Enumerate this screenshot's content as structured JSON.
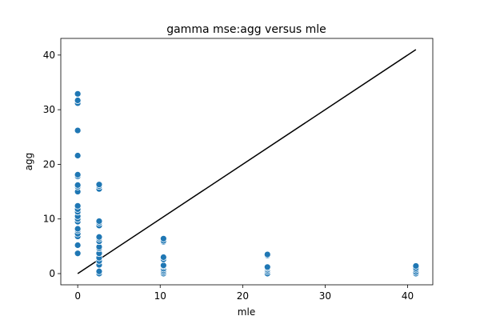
{
  "chart_data": {
    "type": "scatter",
    "title": "gamma mse:agg versus mle",
    "xlabel": "mle",
    "ylabel": "agg",
    "xlim": [
      -2.05,
      43.05
    ],
    "ylim": [
      -2.05,
      43.05
    ],
    "xticks": [
      0,
      10,
      20,
      30,
      40
    ],
    "yticks": [
      0,
      10,
      20,
      30,
      40
    ],
    "grid": false,
    "point_color": "#1f77b4",
    "line_color": "#000000",
    "reference_line": {
      "x": [
        0,
        41
      ],
      "y": [
        0,
        41
      ]
    },
    "series": [
      {
        "points": [
          [
            0,
            3.7
          ],
          [
            0,
            5.2
          ],
          [
            0,
            6.8
          ],
          [
            0,
            7.3
          ],
          [
            0,
            7.9
          ],
          [
            0,
            8.2
          ],
          [
            0,
            9.5
          ],
          [
            0,
            10.0
          ],
          [
            0,
            10.5
          ],
          [
            0,
            11.3
          ],
          [
            0,
            11.8
          ],
          [
            0,
            12.4
          ],
          [
            0,
            15.0
          ],
          [
            0,
            15.9
          ],
          [
            0,
            16.2
          ],
          [
            0,
            17.8
          ],
          [
            0,
            18.1
          ],
          [
            0,
            21.6
          ],
          [
            0,
            26.2
          ],
          [
            0,
            31.2
          ],
          [
            0,
            31.7
          ],
          [
            0,
            32.9
          ],
          [
            2.6,
            0.0
          ],
          [
            2.6,
            0.4
          ],
          [
            2.6,
            1.6
          ],
          [
            2.6,
            2.3
          ],
          [
            2.6,
            2.9
          ],
          [
            2.6,
            3.7
          ],
          [
            2.6,
            4.6
          ],
          [
            2.6,
            4.9
          ],
          [
            2.6,
            5.9
          ],
          [
            2.6,
            6.4
          ],
          [
            2.6,
            6.7
          ],
          [
            2.6,
            8.8
          ],
          [
            2.6,
            9.3
          ],
          [
            2.6,
            9.6
          ],
          [
            2.6,
            15.5
          ],
          [
            2.6,
            16.0
          ],
          [
            2.6,
            16.3
          ],
          [
            10.4,
            0.0
          ],
          [
            10.4,
            0.3
          ],
          [
            10.4,
            0.6
          ],
          [
            10.4,
            0.9
          ],
          [
            10.4,
            1.3
          ],
          [
            10.4,
            1.5
          ],
          [
            10.4,
            2.6
          ],
          [
            10.4,
            3.0
          ],
          [
            10.4,
            5.8
          ],
          [
            10.4,
            6.0
          ],
          [
            10.4,
            6.4
          ],
          [
            23.0,
            0.0
          ],
          [
            23.0,
            0.4
          ],
          [
            23.0,
            0.7
          ],
          [
            23.0,
            1.0
          ],
          [
            23.0,
            1.2
          ],
          [
            23.0,
            3.3
          ],
          [
            23.0,
            3.5
          ],
          [
            41.0,
            0.0
          ],
          [
            41.0,
            0.3
          ],
          [
            41.0,
            0.7
          ],
          [
            41.0,
            1.0
          ],
          [
            41.0,
            1.4
          ]
        ]
      }
    ]
  }
}
